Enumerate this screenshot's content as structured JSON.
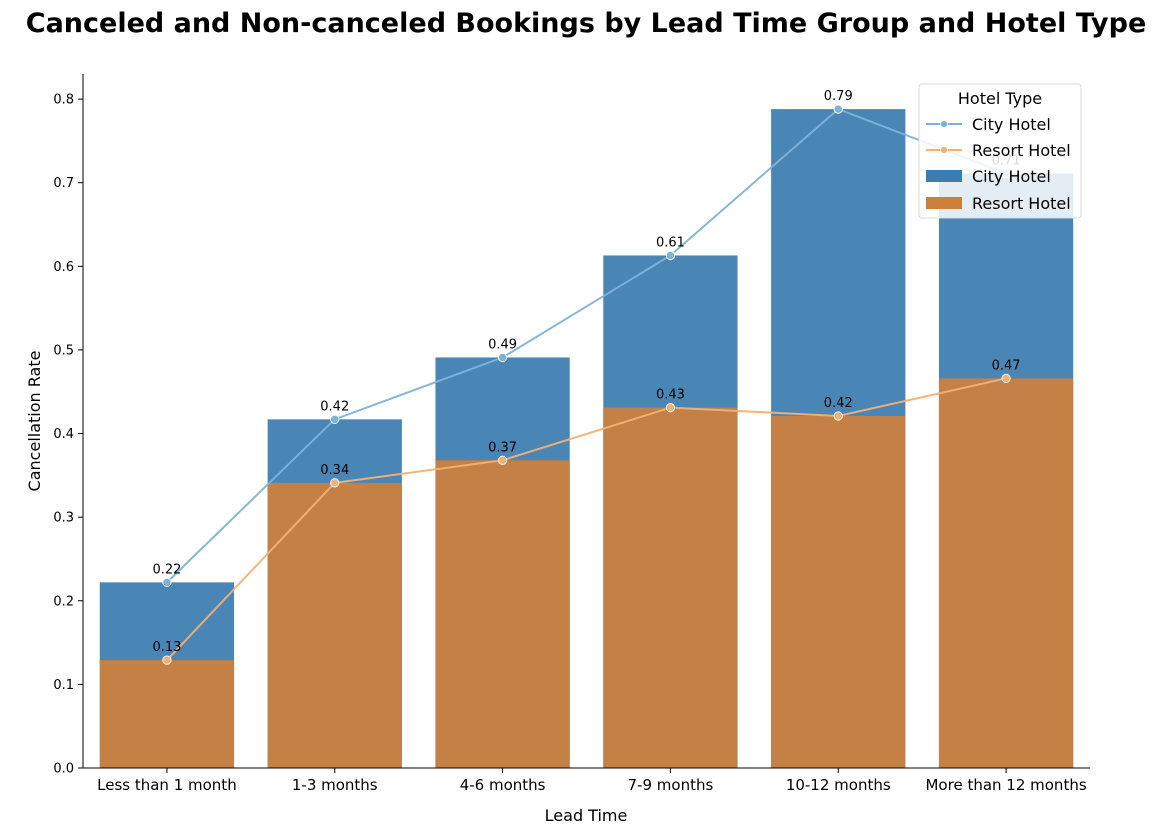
{
  "chart_data": {
    "type": "bar",
    "title": "Canceled and Non-canceled Bookings by Lead Time Group and Hotel Type",
    "xlabel": "Lead Time",
    "ylabel": "Cancellation Rate",
    "ylim": [
      0,
      0.83
    ],
    "yticks": [
      "0.0",
      "0.1",
      "0.2",
      "0.3",
      "0.4",
      "0.5",
      "0.6",
      "0.7",
      "0.8"
    ],
    "categories": [
      "Less than 1 month",
      "1-3 months",
      "4-6 months",
      "7-9 months",
      "10-12 months",
      "More than 12 months"
    ],
    "series": [
      {
        "name": "City Hotel",
        "values": [
          0.222,
          0.417,
          0.491,
          0.613,
          0.788,
          0.711
        ],
        "labels": [
          "0.22",
          "0.42",
          "0.49",
          "0.61",
          "0.79",
          "0.71"
        ],
        "bar_color": "#3b7db0",
        "line_color": "#7fb2d8"
      },
      {
        "name": "Resort Hotel",
        "values": [
          0.129,
          0.341,
          0.368,
          0.431,
          0.421,
          0.466
        ],
        "labels": [
          "0.13",
          "0.34",
          "0.37",
          "0.43",
          "0.42",
          "0.47"
        ],
        "bar_color": "#cd803c",
        "line_color": "#f5b072"
      }
    ],
    "legend": {
      "title": "Hotel Type",
      "position": "top-right",
      "entries": [
        "City Hotel",
        "Resort Hotel",
        "City Hotel",
        "Resort Hotel"
      ]
    },
    "grid": false
  }
}
